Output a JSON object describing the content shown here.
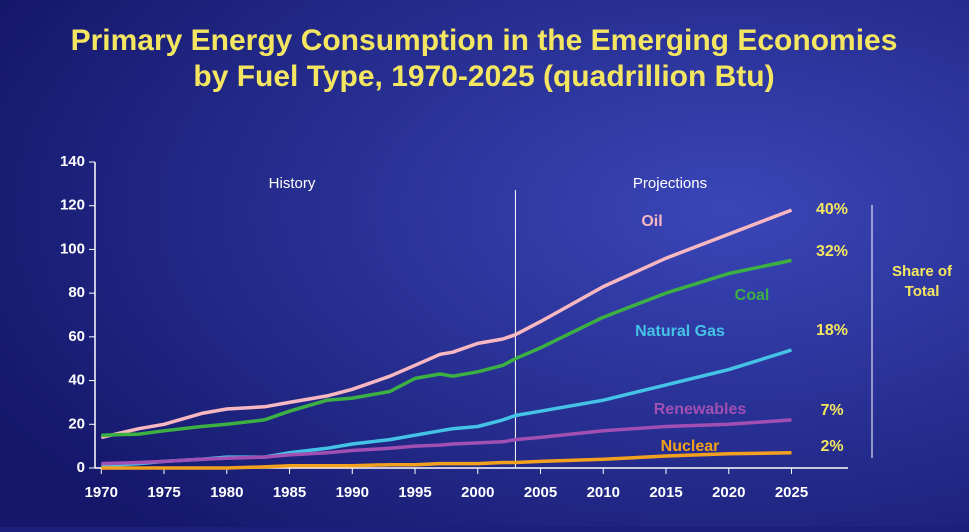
{
  "chart_data": {
    "type": "line",
    "title": "Primary Energy Consumption in the Emerging Economies",
    "subtitle": "by Fuel Type, 1970-2025 (quadrillion Btu)",
    "x": [
      1970,
      1973,
      1975,
      1978,
      1980,
      1983,
      1985,
      1988,
      1990,
      1993,
      1995,
      1997,
      1998,
      2000,
      2002,
      2003,
      2005,
      2010,
      2015,
      2020,
      2025
    ],
    "series": [
      {
        "name": "Oil",
        "color": "#f8b8c2",
        "values": [
          14,
          18,
          20,
          25,
          27,
          28,
          30,
          33,
          36,
          42,
          47,
          52,
          53,
          57,
          59,
          61,
          67,
          83,
          96,
          107,
          118
        ]
      },
      {
        "name": "Coal",
        "color": "#3cb043",
        "values": [
          15,
          15.5,
          17,
          19,
          20,
          22,
          26,
          31,
          32,
          35,
          41,
          43,
          42,
          44,
          47,
          50,
          55,
          69,
          80,
          89,
          95
        ]
      },
      {
        "name": "Natural Gas",
        "color": "#45c3e6",
        "values": [
          1,
          2,
          3,
          4,
          5,
          5,
          7,
          9,
          11,
          13,
          15,
          17,
          18,
          19,
          22,
          24,
          26,
          31,
          38,
          45,
          54
        ]
      },
      {
        "name": "Renewables",
        "color": "#a24fb3",
        "values": [
          2,
          2.5,
          3,
          4,
          4.5,
          5,
          6,
          7,
          8,
          9,
          10,
          10.5,
          11,
          11.5,
          12,
          13,
          14,
          17,
          19,
          20,
          22
        ]
      },
      {
        "name": "Nuclear",
        "color": "#f2a11f",
        "values": [
          0,
          0,
          0,
          0,
          0,
          0.5,
          1,
          1,
          1,
          1.5,
          1.5,
          2,
          2,
          2,
          2.5,
          2.5,
          3,
          4,
          5.5,
          6.5,
          7
        ]
      }
    ],
    "share_of_total": {
      "title": "Share of Total",
      "values": [
        40,
        32,
        18,
        7,
        2
      ],
      "value_labels": [
        "40%",
        "32%",
        "18%",
        "7%",
        "2%"
      ]
    },
    "annotations": [
      "History",
      "Projections"
    ],
    "divider_x": 2003,
    "xlim": [
      1969.5,
      2029.5
    ],
    "xticks": [
      1970,
      1975,
      1980,
      1985,
      1990,
      1995,
      2000,
      2005,
      2010,
      2015,
      2020,
      2025
    ],
    "ylim": [
      0,
      140
    ],
    "yticks": [
      0,
      20,
      40,
      60,
      80,
      100,
      120,
      140
    ]
  }
}
